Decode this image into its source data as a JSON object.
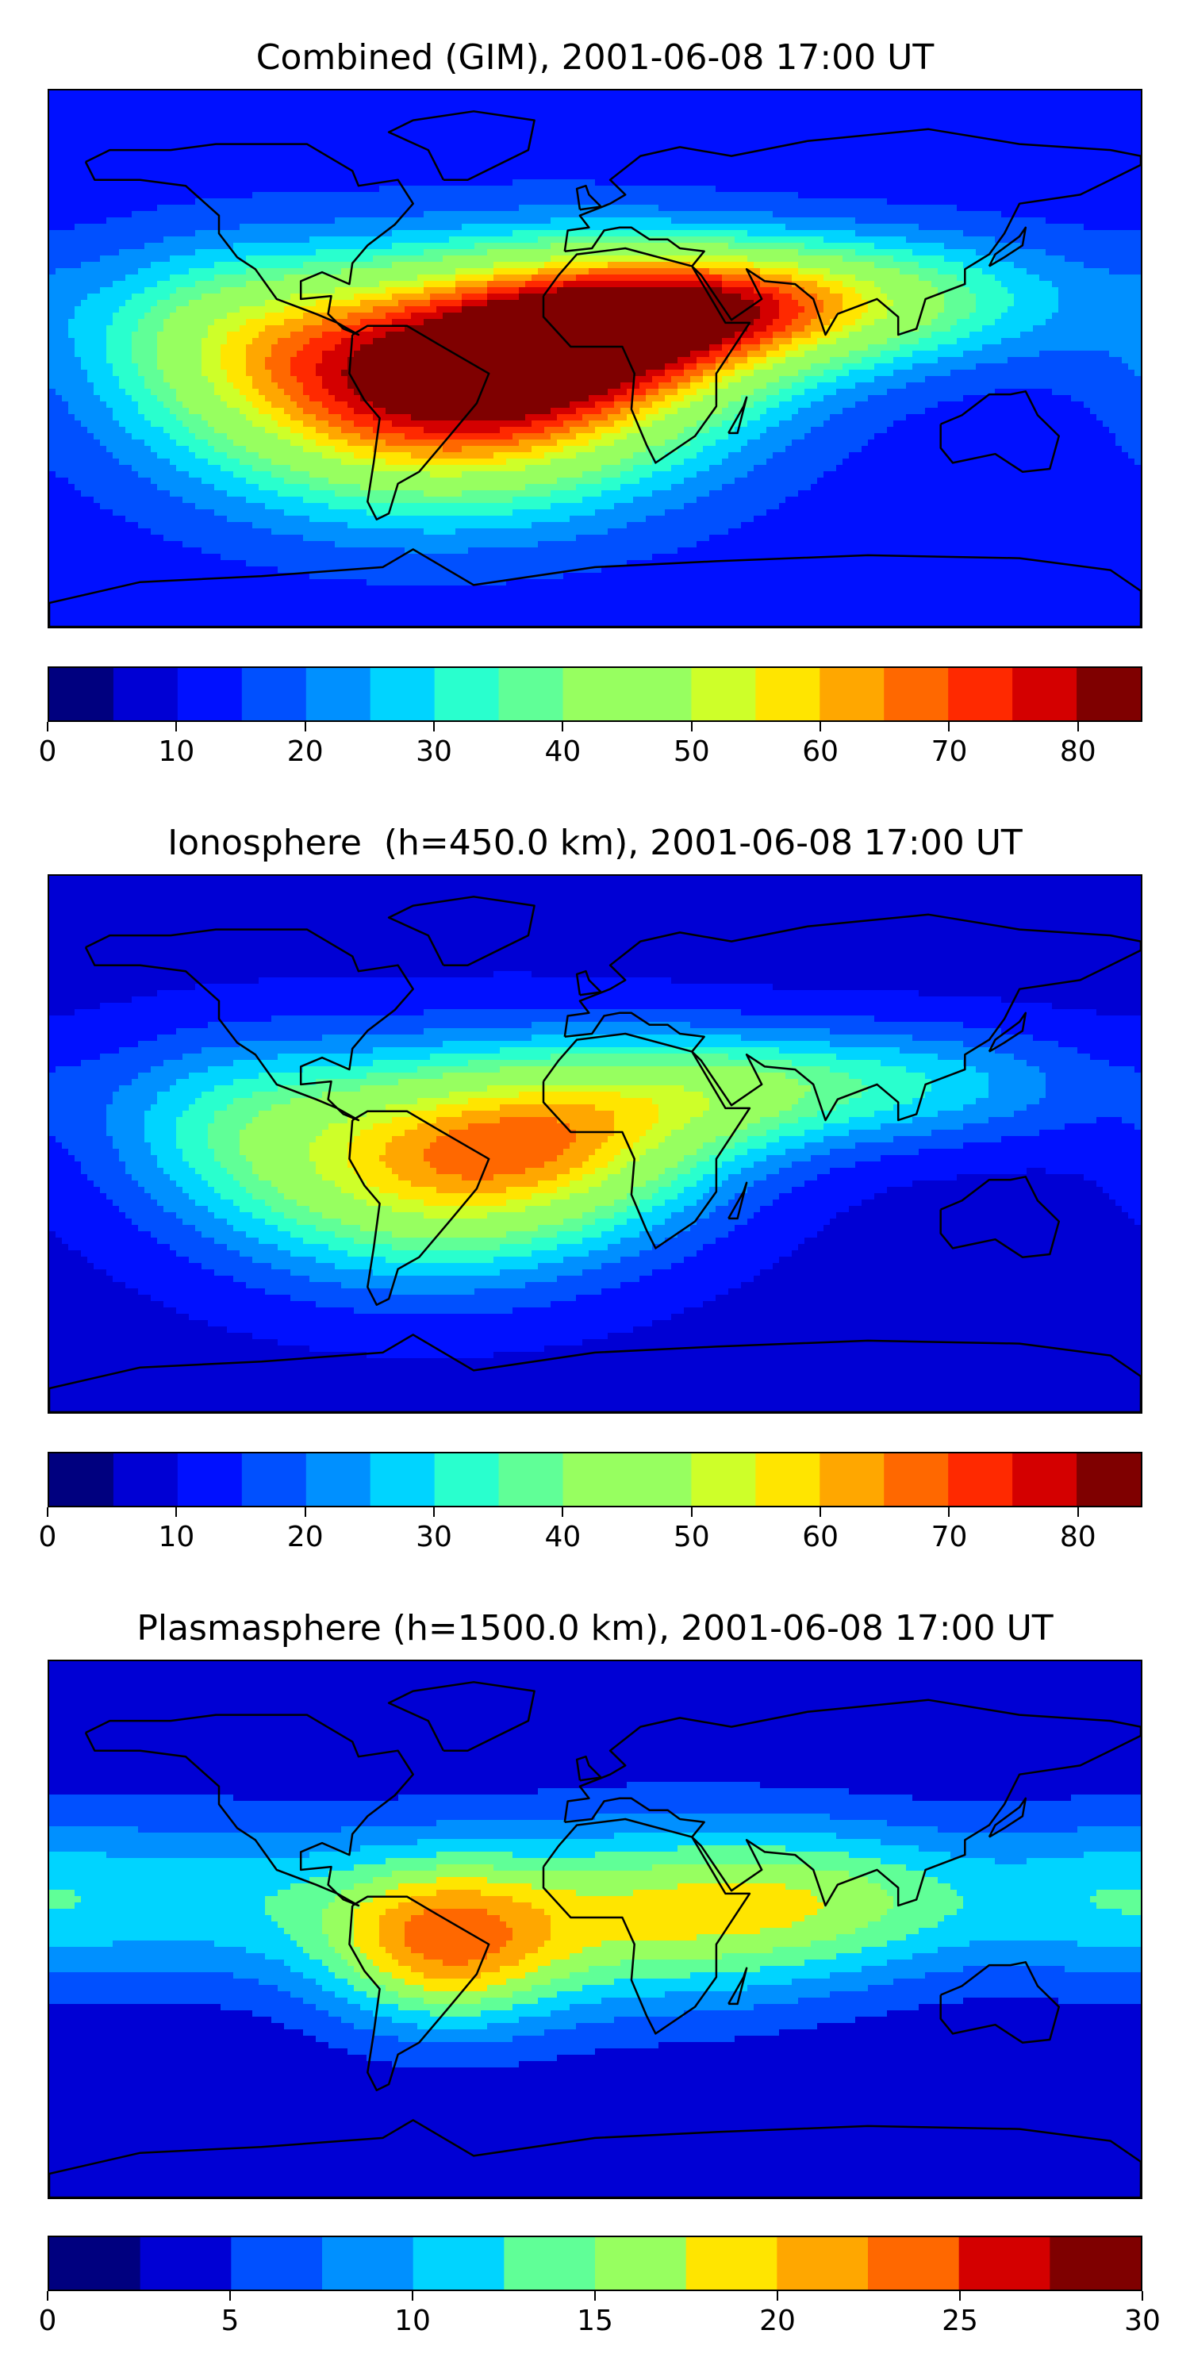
{
  "panels": [
    {
      "title": "Combined (GIM), 2001-06-08 17:00 UT",
      "colorbar": {
        "min": 0,
        "max": 85,
        "step": 5,
        "tick_labels": [
          "0",
          "10",
          "20",
          "30",
          "40",
          "50",
          "60",
          "70",
          "80"
        ],
        "tick_values": [
          0,
          10,
          20,
          30,
          40,
          50,
          60,
          70,
          80
        ]
      },
      "field": {
        "background": 12,
        "features": [
          {
            "lon": -52,
            "lat": -12,
            "amp": 62,
            "slon": 55,
            "slat": 26,
            "label": "south-america-peak"
          },
          {
            "lon": -5,
            "lat": 8,
            "amp": 45,
            "slon": 45,
            "slat": 20
          },
          {
            "lon": 40,
            "lat": 18,
            "amp": 35,
            "slon": 40,
            "slat": 14
          },
          {
            "lon": 100,
            "lat": 20,
            "amp": 22,
            "slon": 45,
            "slat": 15
          },
          {
            "lon": -120,
            "lat": 10,
            "amp": 20,
            "slon": 35,
            "slat": 20
          }
        ]
      }
    },
    {
      "title": "Ionosphere  (h=450.0 km), 2001-06-08 17:00 UT",
      "colorbar": {
        "min": 0,
        "max": 85,
        "step": 5,
        "tick_labels": [
          "0",
          "10",
          "20",
          "30",
          "40",
          "50",
          "60",
          "70",
          "80"
        ],
        "tick_values": [
          0,
          10,
          20,
          30,
          40,
          50,
          60,
          70,
          80
        ]
      },
      "field": {
        "background": 8,
        "features": [
          {
            "lon": -55,
            "lat": -10,
            "amp": 42,
            "slon": 50,
            "slat": 25
          },
          {
            "lon": -10,
            "lat": 5,
            "amp": 30,
            "slon": 40,
            "slat": 20
          },
          {
            "lon": 45,
            "lat": 18,
            "amp": 22,
            "slon": 35,
            "slat": 14
          },
          {
            "lon": 110,
            "lat": 20,
            "amp": 18,
            "slon": 40,
            "slat": 14
          },
          {
            "lon": -120,
            "lat": 10,
            "amp": 15,
            "slon": 35,
            "slat": 20
          }
        ]
      }
    },
    {
      "title": "Plasmasphere (h=1500.0 km), 2001-06-08 17:00 UT",
      "colorbar": {
        "min": 0,
        "max": 30,
        "step": 2.5,
        "tick_labels": [
          "0",
          "5",
          "10",
          "15",
          "20",
          "25",
          "30"
        ],
        "tick_values": [
          0,
          5,
          10,
          15,
          20,
          25,
          30
        ]
      },
      "field": {
        "background": 3,
        "features": [
          {
            "lon": -50,
            "lat": -5,
            "amp": 16,
            "slon": 28,
            "slat": 20
          },
          {
            "lon": 20,
            "lat": 5,
            "amp": 13,
            "slon": 45,
            "slat": 22
          },
          {
            "lon": 90,
            "lat": 10,
            "amp": 9,
            "slon": 40,
            "slat": 18
          },
          {
            "lon": -120,
            "lat": 10,
            "amp": 8,
            "slon": 45,
            "slat": 20
          },
          {
            "lon": 170,
            "lat": 10,
            "amp": 6,
            "slon": 30,
            "slat": 20
          }
        ]
      }
    }
  ],
  "colormap": [
    "#00007f",
    "#0000d4",
    "#0010ff",
    "#0050ff",
    "#0090ff",
    "#00d4ff",
    "#29ffce",
    "#60ff97",
    "#97ff60",
    "#ceff29",
    "#ffe500",
    "#ffa700",
    "#ff6800",
    "#ff2900",
    "#d40000",
    "#7f0000"
  ],
  "coastline_color": "#000000"
}
